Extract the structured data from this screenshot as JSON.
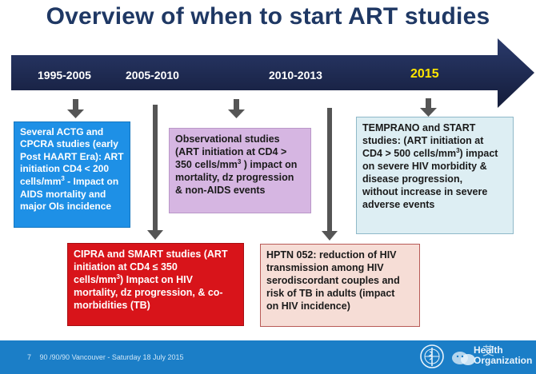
{
  "title": "Overview of when to start ART studies",
  "periods": [
    "1995-2005",
    "2005-2010",
    "2010-2013",
    "2015"
  ],
  "boxes": {
    "actg": {
      "lines": [
        "Several ACTG and",
        "CPCRA studies (early",
        "Post HAART Era): ART",
        "initiation CD4 < 200",
        "cells/mm",
        " - Impact on",
        "AIDS mortality and",
        "major OIs incidence"
      ]
    },
    "observational": {
      "lines": [
        "Observational studies",
        "(ART initiation at CD4 >",
        "350 cells/mm",
        " ) impact on",
        "mortality, dz progression",
        "& non-AIDS events"
      ]
    },
    "cipra": {
      "lines": [
        "CIPRA and SMART studies (ART",
        "initiation at CD4 ≤ 350",
        "cells/mm",
        ") Impact on HIV",
        "mortality, dz progression, & co-",
        "morbidities (TB)"
      ]
    },
    "hptn": {
      "lines": [
        "HPTN 052: reduction of HIV",
        "transmission among HIV",
        "serodiscordant couples and",
        "risk of TB in adults (impact",
        "on HIV incidence)"
      ]
    },
    "temprano": {
      "lines": [
        "TEMPRANO and START",
        "studies: (ART initiation at",
        "CD4 > 500 cells/mm",
        ") impact",
        "on severe HIV morbidity &",
        "disease progression,",
        "without increase in severe",
        "adverse events"
      ]
    }
  },
  "superscript": "3",
  "footer": {
    "page": "7",
    "event": "90 /90/90 Vancouver - Saturday 18 July 2015",
    "org_line1": "Health",
    "org_line2": "Organization",
    "watermark": "艾"
  },
  "colors": {
    "title": "#1f3864",
    "timeline": "#1f2d57",
    "highlight_year": "#ffe600",
    "blue_box": "#1e90e6",
    "purple_box": "#d6b6e2",
    "red_box": "#d8141a",
    "tan_box": "#f6ddd6",
    "light_box": "#ddeef3",
    "footer": "#1b7ec7",
    "arrow": "#555555"
  }
}
